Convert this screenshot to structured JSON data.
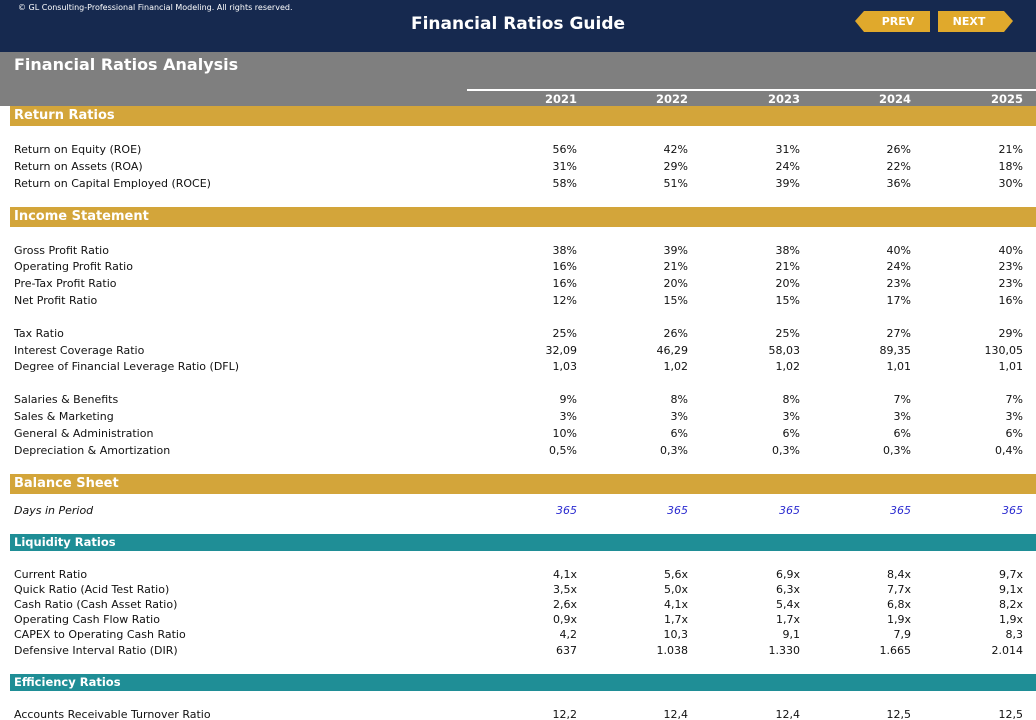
{
  "header": {
    "copyright": "© GL Consulting-Professional Financial Modeling. All rights reserved.",
    "title": "Financial Ratios Guide",
    "prev": "PREV",
    "next": "NEXT"
  },
  "sheet_title": "Financial Ratios Analysis",
  "years": [
    "2021",
    "2022",
    "2023",
    "2024",
    "2025"
  ],
  "sections": [
    {
      "title": "Return Ratios",
      "color": "#d3a53a",
      "groups": [
        [
          {
            "label": "Return on Equity (ROE)",
            "values": [
              "56%",
              "42%",
              "31%",
              "26%",
              "21%"
            ]
          },
          {
            "label": "Return on Assets (ROA)",
            "values": [
              "31%",
              "29%",
              "24%",
              "22%",
              "18%"
            ]
          },
          {
            "label": "Return on Capital Employed (ROCE)",
            "values": [
              "58%",
              "51%",
              "39%",
              "36%",
              "30%"
            ]
          }
        ]
      ]
    },
    {
      "title": "Income Statement",
      "color": "#d3a53a",
      "groups": [
        [
          {
            "label": "Gross Profit Ratio",
            "values": [
              "38%",
              "39%",
              "38%",
              "40%",
              "40%"
            ]
          },
          {
            "label": "Operating Profit Ratio",
            "values": [
              "16%",
              "21%",
              "21%",
              "24%",
              "23%"
            ]
          },
          {
            "label": "Pre-Tax Profit Ratio",
            "values": [
              "16%",
              "20%",
              "20%",
              "23%",
              "23%"
            ]
          },
          {
            "label": "Net Profit Ratio",
            "values": [
              "12%",
              "15%",
              "15%",
              "17%",
              "16%"
            ]
          }
        ],
        [
          {
            "label": "Tax Ratio",
            "values": [
              "25%",
              "26%",
              "25%",
              "27%",
              "29%"
            ]
          },
          {
            "label": "Interest Coverage Ratio",
            "values": [
              "32,09",
              "46,29",
              "58,03",
              "89,35",
              "130,05"
            ]
          },
          {
            "label": "Degree of Financial Leverage Ratio (DFL)",
            "values": [
              "1,03",
              "1,02",
              "1,02",
              "1,01",
              "1,01"
            ]
          }
        ],
        [
          {
            "label": "Salaries & Benefits",
            "values": [
              "9%",
              "8%",
              "8%",
              "7%",
              "7%"
            ]
          },
          {
            "label": "Sales & Marketing",
            "values": [
              "3%",
              "3%",
              "3%",
              "3%",
              "3%"
            ]
          },
          {
            "label": "General & Administration",
            "values": [
              "10%",
              "6%",
              "6%",
              "6%",
              "6%"
            ]
          },
          {
            "label": "Depreciation & Amortization",
            "values": [
              "0,5%",
              "0,3%",
              "0,3%",
              "0,3%",
              "0,4%"
            ]
          }
        ]
      ]
    },
    {
      "title": "Balance Sheet",
      "color": "#d3a53a",
      "groups": [
        [
          {
            "label": "Days in Period",
            "values": [
              "365",
              "365",
              "365",
              "365",
              "365"
            ],
            "italic": true,
            "value_color": "#2b2bd0"
          }
        ]
      ]
    },
    {
      "title": "Liquidity Ratios",
      "color": "#1f8e96",
      "groups": [
        [
          {
            "label": "Current Ratio",
            "values": [
              "4,1x",
              "5,6x",
              "6,9x",
              "8,4x",
              "9,7x"
            ]
          },
          {
            "label": "Quick Ratio (Acid Test Ratio)",
            "values": [
              "3,5x",
              "5,0x",
              "6,3x",
              "7,7x",
              "9,1x"
            ]
          },
          {
            "label": "Cash Ratio (Cash Asset Ratio)",
            "values": [
              "2,6x",
              "4,1x",
              "5,4x",
              "6,8x",
              "8,2x"
            ]
          },
          {
            "label": "Operating Cash Flow Ratio",
            "values": [
              "0,9x",
              "1,7x",
              "1,7x",
              "1,9x",
              "1,9x"
            ]
          },
          {
            "label": "CAPEX to Operating Cash Ratio",
            "values": [
              "4,2",
              "10,3",
              "9,1",
              "7,9",
              "8,3"
            ]
          },
          {
            "label": "Defensive Interval Ratio (DIR)",
            "values": [
              "637",
              "1.038",
              "1.330",
              "1.665",
              "2.014"
            ]
          }
        ]
      ]
    },
    {
      "title": "Efficiency Ratios",
      "color": "#1f8e96",
      "groups": [
        [
          {
            "label": "Accounts Receivable Turnover Ratio",
            "values": [
              "12,2",
              "12,4",
              "12,4",
              "12,5",
              "12,5"
            ]
          }
        ]
      ]
    }
  ]
}
